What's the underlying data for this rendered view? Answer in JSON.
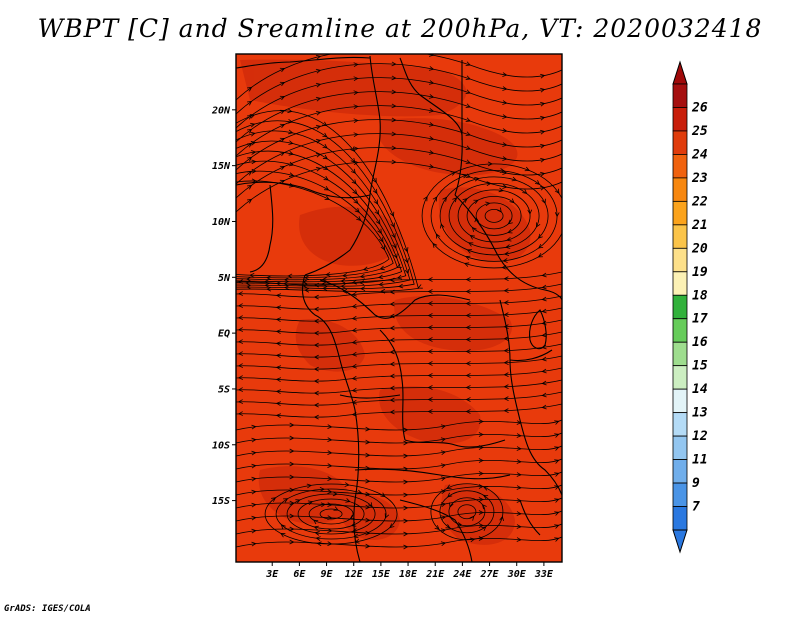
{
  "title": "WBPT [C] and Sreamline at 200hPa, VT: 2020032418",
  "footer": "GrADS: IGES/COLA",
  "map": {
    "lon_range": [
      -1,
      35
    ],
    "lat_range": [
      -20.5,
      25
    ],
    "fill_color": "#e83a0c",
    "lat_ticks": [
      {
        "value": 20,
        "label": "20N"
      },
      {
        "value": 15,
        "label": "15N"
      },
      {
        "value": 10,
        "label": "10N"
      },
      {
        "value": 5,
        "label": "5N"
      },
      {
        "value": 0,
        "label": "EQ"
      },
      {
        "value": -5,
        "label": "5S"
      },
      {
        "value": -10,
        "label": "10S"
      },
      {
        "value": -15,
        "label": "15S"
      }
    ],
    "lon_ticks": [
      {
        "value": 3,
        "label": "3E"
      },
      {
        "value": 6,
        "label": "6E"
      },
      {
        "value": 9,
        "label": "9E"
      },
      {
        "value": 12,
        "label": "12E"
      },
      {
        "value": 15,
        "label": "15E"
      },
      {
        "value": 18,
        "label": "18E"
      },
      {
        "value": 21,
        "label": "21E"
      },
      {
        "value": 24,
        "label": "24E"
      },
      {
        "value": 27,
        "label": "27E"
      },
      {
        "value": 30,
        "label": "30E"
      },
      {
        "value": 33,
        "label": "33E"
      }
    ]
  },
  "colorbar": {
    "levels": [
      {
        "label": "26",
        "color": "#a50f0f"
      },
      {
        "label": "25",
        "color": "#c81e0a"
      },
      {
        "label": "24",
        "color": "#e03c0c"
      },
      {
        "label": "23",
        "color": "#f0620e"
      },
      {
        "label": "22",
        "color": "#f7870f"
      },
      {
        "label": "21",
        "color": "#fba31c"
      },
      {
        "label": "20",
        "color": "#fbc449"
      },
      {
        "label": "19",
        "color": "#fde08a"
      },
      {
        "label": "18",
        "color": "#fcf1b5"
      },
      {
        "label": "17",
        "color": "#31b13b"
      },
      {
        "label": "16",
        "color": "#66cc5a"
      },
      {
        "label": "15",
        "color": "#9edd8e"
      },
      {
        "label": "14",
        "color": "#cceec1"
      },
      {
        "label": "13",
        "color": "#e3f4f8"
      },
      {
        "label": "12",
        "color": "#b4dbf6"
      },
      {
        "label": "11",
        "color": "#93c6f0"
      },
      {
        "label": "9",
        "color": "#70aeeb"
      },
      {
        "label": "7",
        "color": "#4a94e6"
      }
    ],
    "bottom_color": "#2a78e0",
    "top_arrow_color": "#a00a0a",
    "bottom_arrow_color": "#2a78e0"
  }
}
